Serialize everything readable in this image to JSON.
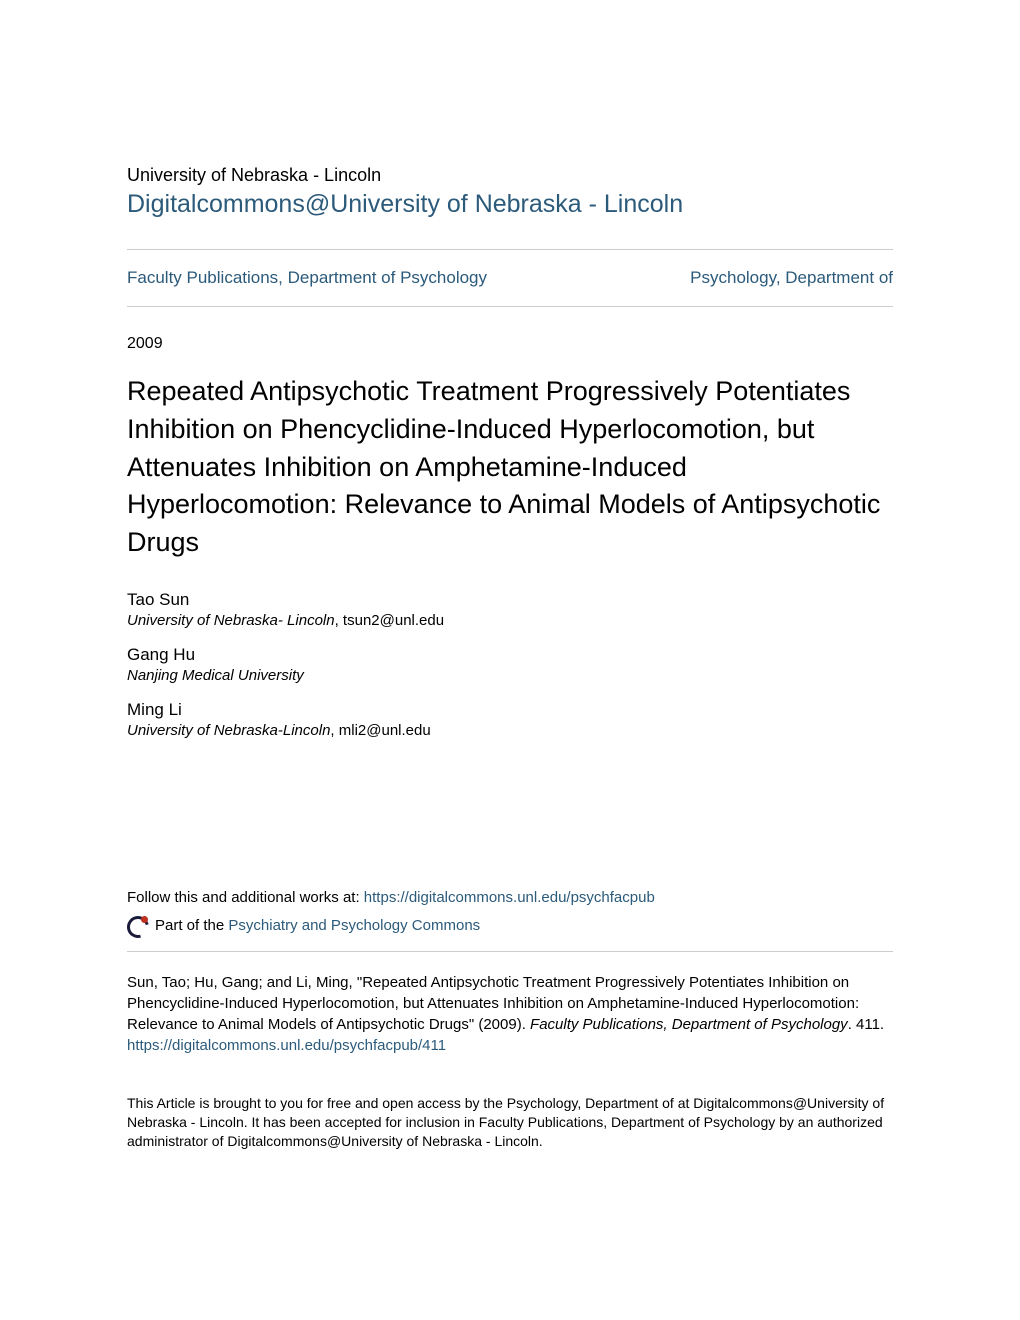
{
  "header": {
    "institution": "University of Nebraska - Lincoln",
    "repository": "Digitalcommons@University of Nebraska - Lincoln"
  },
  "nav": {
    "left": "Faculty Publications, Department of Psychology",
    "right": "Psychology, Department of"
  },
  "year": "2009",
  "title": "Repeated Antipsychotic Treatment Progressively Potentiates Inhibition on Phencyclidine-Induced Hyperlocomotion, but Attenuates Inhibition on Amphetamine-Induced Hyperlocomotion: Relevance to Animal Models of Antipsychotic Drugs",
  "authors": [
    {
      "name": "Tao Sun",
      "affiliation": "University of Nebraska- Lincoln",
      "email": ", tsun2@unl.edu"
    },
    {
      "name": "Gang Hu",
      "affiliation": "Nanjing Medical University",
      "email": ""
    },
    {
      "name": "Ming Li",
      "affiliation": "University of Nebraska-Lincoln",
      "email": ", mli2@unl.edu"
    }
  ],
  "follow": {
    "prefix": "Follow this and additional works at: ",
    "url": "https://digitalcommons.unl.edu/psychfacpub"
  },
  "partof": {
    "prefix": "Part of the ",
    "link": "Psychiatry and Psychology Commons"
  },
  "citation": {
    "text_before": "Sun, Tao; Hu, Gang; and Li, Ming, \"Repeated Antipsychotic Treatment Progressively Potentiates Inhibition on Phencyclidine-Induced Hyperlocomotion, but Attenuates Inhibition on Amphetamine-Induced Hyperlocomotion: Relevance to Animal Models of Antipsychotic Drugs\" (2009). ",
    "italic": "Faculty Publications, Department of Psychology",
    "text_after": ". 411.",
    "link": "https://digitalcommons.unl.edu/psychfacpub/411"
  },
  "fine_print": "This Article is brought to you for free and open access by the Psychology, Department of at Digitalcommons@University of Nebraska - Lincoln. It has been accepted for inclusion in Faculty Publications, Department of Psychology by an authorized administrator of Digitalcommons@University of Nebraska - Lincoln."
}
